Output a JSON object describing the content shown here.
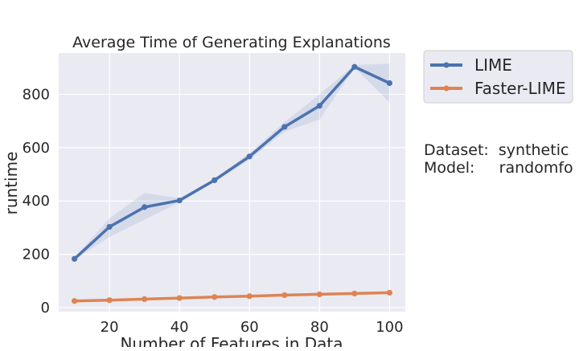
{
  "chart_data": {
    "type": "line",
    "title": "Average Time of Generating Explanations",
    "xlabel": "Number of Features in Data",
    "ylabel": "runtime",
    "x": [
      10,
      20,
      30,
      40,
      50,
      60,
      70,
      80,
      90,
      100
    ],
    "xticks": [
      "20",
      "40",
      "60",
      "80",
      "100"
    ],
    "yticks": [
      "0",
      "200",
      "400",
      "600",
      "800"
    ],
    "xlim": [
      5.5,
      104.5
    ],
    "ylim": [
      -15,
      955
    ],
    "grid": true,
    "legend_position": "outside right, top",
    "series": [
      {
        "name": "LIME",
        "color": "#4c72b0",
        "values": [
          183,
          303,
          377,
          402,
          478,
          567,
          678,
          757,
          903,
          842
        ],
        "band_low": [
          180,
          265,
          330,
          395,
          472,
          555,
          660,
          705,
          900,
          770
        ],
        "band_high": [
          186,
          335,
          430,
          410,
          484,
          580,
          695,
          800,
          910,
          915
        ]
      },
      {
        "name": "Faster-LIME",
        "color": "#dd8452",
        "values": [
          25,
          28,
          32,
          36,
          40,
          43,
          47,
          50,
          53,
          56
        ]
      }
    ],
    "annotation": {
      "line1": "Dataset:  synthetic",
      "line2": "Model:     randomfo"
    }
  }
}
